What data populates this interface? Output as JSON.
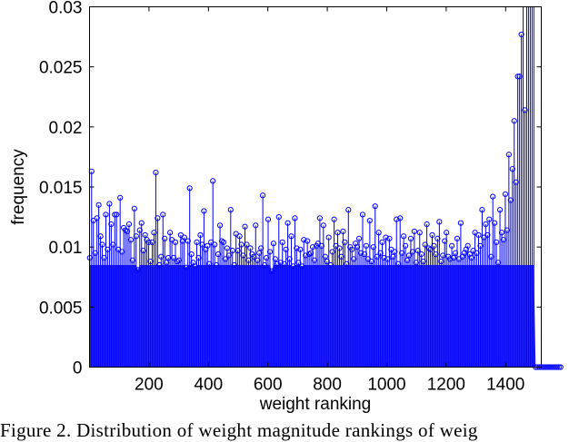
{
  "caption": "Figure 2. Distribution of weight magnitude rankings of weig",
  "chart_data": {
    "type": "stem",
    "xlabel": "weight ranking",
    "ylabel": "frequency",
    "xlim": [
      0,
      1520
    ],
    "ylim": [
      0,
      0.03
    ],
    "xticks": [
      200,
      400,
      600,
      800,
      1000,
      1200,
      1400
    ],
    "yticks": [
      0,
      0.005,
      0.01,
      0.015,
      0.02,
      0.025,
      0.03
    ],
    "ytick_labels": [
      "0",
      "0.005",
      "0.01",
      "0.015",
      "0.02",
      "0.025",
      "0.03"
    ],
    "marker": "circle",
    "color": "#0000ff",
    "grid": false,
    "legend": "none",
    "x_start": 1,
    "x_step": 6,
    "values": [
      0.0091,
      0.0163,
      0.0122,
      0.0095,
      0.0124,
      0.0135,
      0.0109,
      0.0102,
      0.0091,
      0.0127,
      0.0098,
      0.0136,
      0.0119,
      0.0102,
      0.0127,
      0.0127,
      0.0098,
      0.0141,
      0.0096,
      0.0116,
      0.0114,
      0.0113,
      0.0119,
      0.0106,
      0.0089,
      0.0132,
      0.0109,
      0.0081,
      0.0114,
      0.012,
      0.0097,
      0.011,
      0.0106,
      0.0104,
      0.0088,
      0.0104,
      0.0112,
      0.0162,
      0.0124,
      0.0085,
      0.0092,
      0.0127,
      0.0107,
      0.0087,
      0.0091,
      0.0112,
      0.0106,
      0.0091,
      0.0104,
      0.0088,
      0.0089,
      0.011,
      0.0105,
      0.0108,
      0.0083,
      0.0105,
      0.0149,
      0.0094,
      0.0087,
      0.0084,
      0.0104,
      0.0091,
      0.011,
      0.0102,
      0.013,
      0.0098,
      0.0101,
      0.0086,
      0.0104,
      0.0155,
      0.0102,
      0.0085,
      0.0094,
      0.0118,
      0.0105,
      0.0104,
      0.009,
      0.0099,
      0.0093,
      0.0131,
      0.0097,
      0.0085,
      0.0111,
      0.0097,
      0.0109,
      0.0102,
      0.0093,
      0.0117,
      0.0102,
      0.0089,
      0.0099,
      0.0094,
      0.0092,
      0.0118,
      0.0089,
      0.0095,
      0.0099,
      0.0143,
      0.0085,
      0.0091,
      0.0123,
      0.0096,
      0.008,
      0.0103,
      0.009,
      0.0086,
      0.0125,
      0.0087,
      0.0104,
      0.0086,
      0.0098,
      0.012,
      0.009,
      0.0109,
      0.0084,
      0.0124,
      0.0099,
      0.0087,
      0.0098,
      0.0084,
      0.0106,
      0.0093,
      0.0105,
      0.0094,
      0.0095,
      0.01,
      0.0089,
      0.0101,
      0.0103,
      0.0124,
      0.0101,
      0.0118,
      0.0092,
      0.0088,
      0.0108,
      0.0085,
      0.0096,
      0.0123,
      0.0101,
      0.0112,
      0.0099,
      0.0092,
      0.0113,
      0.0104,
      0.0086,
      0.0131,
      0.01,
      0.0098,
      0.009,
      0.0103,
      0.01,
      0.0107,
      0.0095,
      0.0127,
      0.0094,
      0.0101,
      0.009,
      0.0122,
      0.0088,
      0.01,
      0.0134,
      0.0092,
      0.0112,
      0.0095,
      0.0104,
      0.0091,
      0.0108,
      0.009,
      0.0107,
      0.0098,
      0.0092,
      0.0096,
      0.0123,
      0.0086,
      0.0124,
      0.0095,
      0.0109,
      0.0101,
      0.0089,
      0.0093,
      0.0107,
      0.0096,
      0.0113,
      0.0087,
      0.0097,
      0.0112,
      0.0094,
      0.0088,
      0.0102,
      0.0119,
      0.0099,
      0.0098,
      0.011,
      0.0101,
      0.0094,
      0.0107,
      0.0121,
      0.0088,
      0.0093,
      0.0105,
      0.0112,
      0.0092,
      0.009,
      0.0101,
      0.0091,
      0.0095,
      0.0107,
      0.009,
      0.012,
      0.0092,
      0.0095,
      0.0098,
      0.0101,
      0.0094,
      0.0091,
      0.0097,
      0.0112,
      0.0095,
      0.011,
      0.0101,
      0.0131,
      0.0108,
      0.0119,
      0.011,
      0.0123,
      0.0092,
      0.0142,
      0.012,
      0.0104,
      0.0087,
      0.0131,
      0.0112,
      0.0106,
      0.0144,
      0.0114,
      0.0177,
      0.0139,
      0.0165,
      0.0205,
      0.0154,
      0.0242,
      0.0242,
      0.0277,
      0.0301,
      0.0214,
      0.0301,
      0.0301,
      0.0301,
      0.0301,
      0.0301,
      0.0,
      0.0,
      0.0,
      0.0,
      0.0,
      0.0,
      0.0,
      0.0,
      0.0,
      0.0,
      0.0,
      0.0,
      0.0,
      0.0,
      0.0
    ]
  }
}
